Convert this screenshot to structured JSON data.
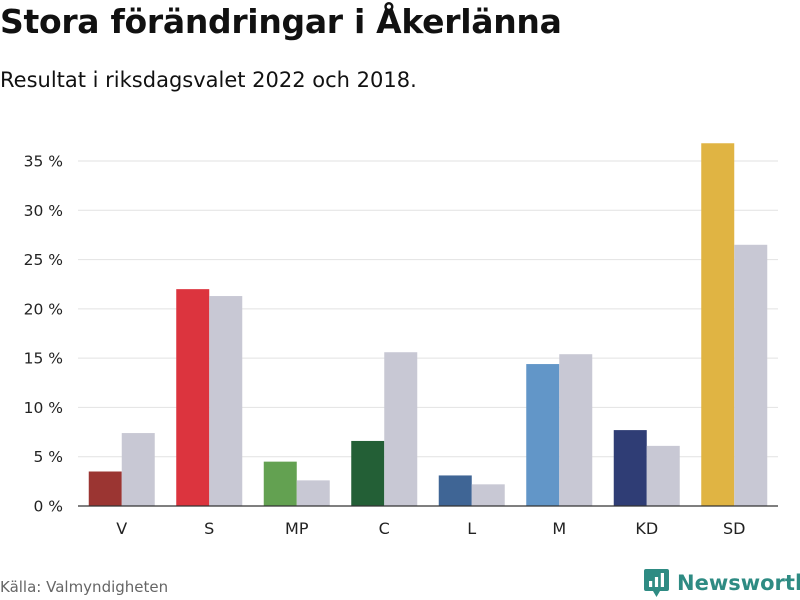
{
  "header": {
    "title": "Stora förändringar i Åkerlänna",
    "subtitle": "Resultat i riksdagsvalet 2022 och 2018."
  },
  "footer": {
    "source": "Källa: Valmyndigheten",
    "brand": "Newsworthy",
    "brand_icon": "bar-chart-badge-icon"
  },
  "chart_data": {
    "type": "bar",
    "categories": [
      "V",
      "S",
      "MP",
      "C",
      "L",
      "M",
      "KD",
      "SD"
    ],
    "series": [
      {
        "values": [
          3.5,
          22.0,
          4.5,
          6.6,
          3.1,
          14.4,
          7.7,
          36.8
        ],
        "colors": [
          "#9b3532",
          "#dc343e",
          "#63a151",
          "#235f36",
          "#3f6595",
          "#6296c8",
          "#2f3d75",
          "#e0b443"
        ]
      },
      {
        "values": [
          7.4,
          21.3,
          2.6,
          15.6,
          2.2,
          15.4,
          6.1,
          26.5
        ],
        "color": "#c8c8d4"
      }
    ],
    "yticks": [
      "0 %",
      "5 %",
      "10 %",
      "15 %",
      "20 %",
      "25 %",
      "30 %",
      "35 %"
    ],
    "ylim": [
      0,
      35
    ],
    "grid": true,
    "legend": "none",
    "gridcolor": "#e2e2e2",
    "axiscolor": "#333333"
  }
}
